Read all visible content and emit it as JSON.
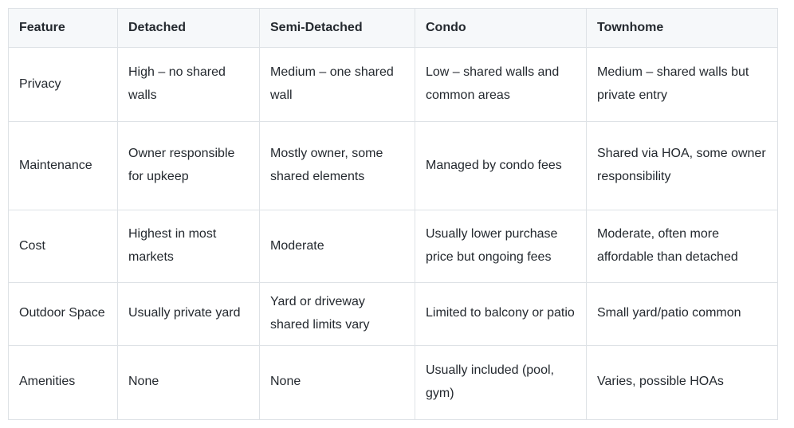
{
  "colors": {
    "page_background": "#ffffff",
    "header_background": "#f6f8fa",
    "border": "#dee2e6",
    "text": "#24292f"
  },
  "table": {
    "columns": [
      "Feature",
      "Detached",
      "Semi-Detached",
      "Condo",
      "Townhome"
    ],
    "rows": [
      {
        "cells": [
          "Privacy",
          "High – no shared walls",
          "Medium – one shared wall",
          "Low – shared walls and common areas",
          "Medium – shared walls but private entry"
        ]
      },
      {
        "cells": [
          "Maintenance",
          "Owner responsible for upkeep",
          "Mostly owner, some shared elements",
          "Managed by condo fees",
          "Shared via HOA, some owner responsibility"
        ]
      },
      {
        "cells": [
          "Cost",
          "Highest in most markets",
          "Moderate",
          "Usually lower purchase price but ongoing fees",
          "Moderate, often more affordable than detached"
        ]
      },
      {
        "cells": [
          "Outdoor Space",
          "Usually private yard",
          "Yard or driveway shared limits vary",
          "Limited to balcony or patio",
          "Small yard/patio common"
        ]
      },
      {
        "cells": [
          "Amenities",
          "None",
          "None",
          "Usually included (pool, gym)",
          "Varies, possible HOAs"
        ]
      }
    ]
  }
}
